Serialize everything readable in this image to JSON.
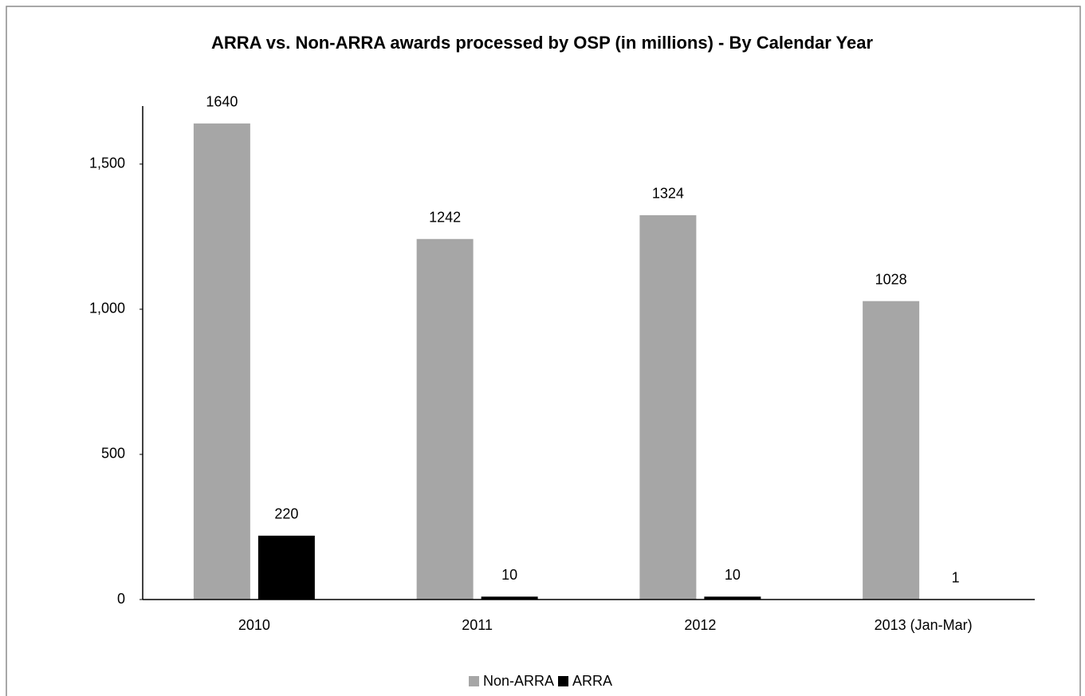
{
  "chart_data": {
    "type": "bar",
    "title": "ARRA vs. Non-ARRA awards processed by OSP (in millions) - By Calendar Year",
    "categories": [
      "2010",
      "2011",
      "2012",
      "2013 (Jan-Mar)"
    ],
    "series": [
      {
        "name": "Non-ARRA",
        "color": "#a6a6a6",
        "values": [
          1640,
          1242,
          1324,
          1028
        ]
      },
      {
        "name": "ARRA",
        "color": "#000000",
        "values": [
          220,
          10,
          10,
          1
        ]
      }
    ],
    "ylim": [
      0,
      1700
    ],
    "yticks": [
      0,
      500,
      {
        "value": 1000,
        "label": "1,000"
      },
      {
        "value": 1500,
        "label": "1,500"
      }
    ],
    "grid": false,
    "legend": "bottom"
  }
}
